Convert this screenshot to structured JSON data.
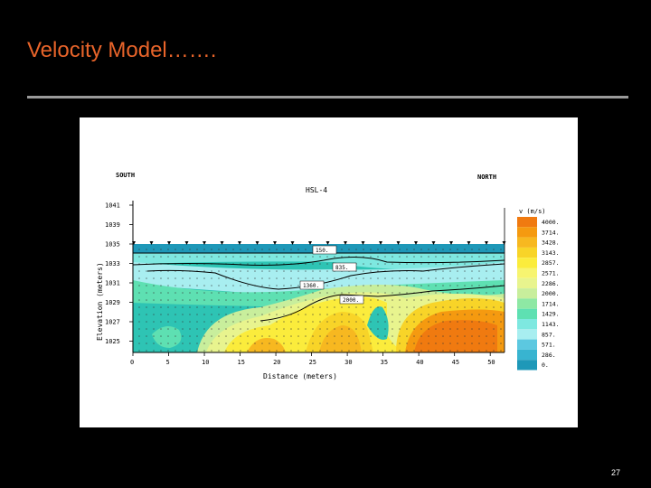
{
  "slide": {
    "title": "Velocity Model…….",
    "page_number": "27"
  },
  "figure": {
    "direction_left": "SOUTH",
    "direction_right": "NORTH",
    "profile_name": "HSL-4",
    "colorbar_title": "v (m/s)",
    "colorbar_labels": [
      "4000.",
      "3714.",
      "3428.",
      "3143.",
      "2857.",
      "2571.",
      "2286.",
      "2000.",
      "1714.",
      "1429.",
      "1143.",
      "857.",
      "571.",
      "286.",
      "0."
    ],
    "colorbar_colors": [
      "#f07a10",
      "#f59a10",
      "#f7b820",
      "#f8d428",
      "#fbec3c",
      "#f7f470",
      "#e8f48e",
      "#c8ee9c",
      "#8ee8a4",
      "#5ee0b2",
      "#7ee8e0",
      "#a8eef0",
      "#5cc8e0",
      "#38b4d0",
      "#1e98b8"
    ],
    "contour_labels": [
      "150.",
      "835.",
      "1360.",
      "2000."
    ],
    "chart_data": {
      "type": "heatmap",
      "xlabel": "Distance (meters)",
      "ylabel": "Elevation (meters)",
      "x_ticks": [
        "0",
        "5",
        "10",
        "15",
        "20",
        "25",
        "30",
        "35",
        "40",
        "45",
        "50"
      ],
      "y_ticks": [
        "1041",
        "1039",
        "1035",
        "1033",
        "1031",
        "1029",
        "1027",
        "1025"
      ],
      "xlim": [
        0,
        52
      ],
      "colorbar_range": [
        0,
        4000
      ]
    }
  }
}
